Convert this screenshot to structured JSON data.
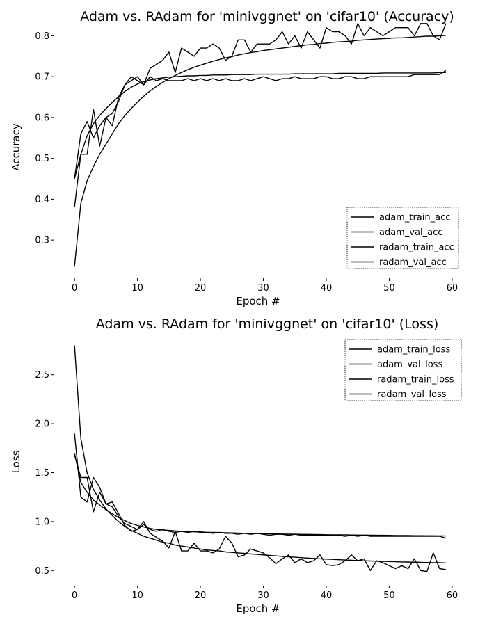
{
  "chart_data": [
    {
      "type": "line",
      "title": "Adam vs. RAdam for 'minivggnet' on 'cifar10' (Accuracy)",
      "xlabel": "Epoch #",
      "ylabel": "Accuracy",
      "xlim": [
        -3,
        62
      ],
      "ylim": [
        0.21,
        0.845
      ],
      "xticks": [
        0,
        10,
        20,
        30,
        40,
        50,
        60
      ],
      "yticks": [
        0.3,
        0.4,
        0.5,
        0.6,
        0.7,
        0.8
      ],
      "ytick_labels": [
        "0.3",
        "0.4",
        "0.5",
        "0.6",
        "0.7",
        "0.8"
      ],
      "grid": false,
      "legend_position": "lower-right",
      "series": [
        {
          "name": "adam_train_acc",
          "values": [
            0.38,
            0.51,
            0.555,
            0.585,
            0.605,
            0.622,
            0.637,
            0.651,
            0.664,
            0.674,
            0.682,
            0.688,
            0.692,
            0.695,
            0.697,
            0.699,
            0.7,
            0.701,
            0.702,
            0.702,
            0.703,
            0.703,
            0.704,
            0.704,
            0.704,
            0.705,
            0.705,
            0.705,
            0.705,
            0.706,
            0.706,
            0.706,
            0.706,
            0.706,
            0.706,
            0.707,
            0.707,
            0.707,
            0.707,
            0.707,
            0.707,
            0.707,
            0.708,
            0.708,
            0.708,
            0.708,
            0.708,
            0.708,
            0.708,
            0.709,
            0.709,
            0.709,
            0.709,
            0.709,
            0.709,
            0.709,
            0.709,
            0.709,
            0.71,
            0.71
          ]
        },
        {
          "name": "adam_val_acc",
          "values": [
            0.45,
            0.56,
            0.59,
            0.55,
            0.58,
            0.6,
            0.58,
            0.65,
            0.68,
            0.69,
            0.7,
            0.68,
            0.7,
            0.69,
            0.695,
            0.69,
            0.69,
            0.69,
            0.695,
            0.69,
            0.695,
            0.69,
            0.695,
            0.69,
            0.695,
            0.69,
            0.69,
            0.695,
            0.69,
            0.695,
            0.7,
            0.695,
            0.69,
            0.695,
            0.695,
            0.7,
            0.695,
            0.695,
            0.695,
            0.7,
            0.7,
            0.695,
            0.695,
            0.7,
            0.7,
            0.695,
            0.695,
            0.7,
            0.7,
            0.7,
            0.7,
            0.7,
            0.7,
            0.7,
            0.705,
            0.705,
            0.705,
            0.705,
            0.705,
            0.715
          ]
        },
        {
          "name": "radam_train_acc",
          "values": [
            0.235,
            0.39,
            0.445,
            0.48,
            0.51,
            0.535,
            0.56,
            0.585,
            0.605,
            0.622,
            0.638,
            0.652,
            0.665,
            0.676,
            0.686,
            0.695,
            0.703,
            0.71,
            0.717,
            0.723,
            0.728,
            0.733,
            0.738,
            0.742,
            0.746,
            0.749,
            0.753,
            0.756,
            0.759,
            0.761,
            0.764,
            0.766,
            0.768,
            0.77,
            0.772,
            0.774,
            0.776,
            0.778,
            0.779,
            0.781,
            0.782,
            0.784,
            0.785,
            0.786,
            0.787,
            0.789,
            0.79,
            0.791,
            0.792,
            0.793,
            0.794,
            0.795,
            0.795,
            0.796,
            0.797,
            0.798,
            0.799,
            0.799,
            0.8,
            0.801
          ]
        },
        {
          "name": "radam_val_acc",
          "values": [
            0.45,
            0.51,
            0.51,
            0.62,
            0.53,
            0.6,
            0.61,
            0.64,
            0.68,
            0.7,
            0.69,
            0.68,
            0.72,
            0.73,
            0.74,
            0.76,
            0.71,
            0.77,
            0.76,
            0.75,
            0.77,
            0.77,
            0.78,
            0.77,
            0.74,
            0.75,
            0.79,
            0.79,
            0.76,
            0.78,
            0.78,
            0.78,
            0.79,
            0.81,
            0.78,
            0.8,
            0.77,
            0.81,
            0.79,
            0.77,
            0.82,
            0.81,
            0.81,
            0.8,
            0.78,
            0.83,
            0.8,
            0.82,
            0.81,
            0.8,
            0.81,
            0.82,
            0.82,
            0.82,
            0.8,
            0.83,
            0.83,
            0.8,
            0.79,
            0.83
          ]
        }
      ]
    },
    {
      "type": "line",
      "title": "Adam vs. RAdam for 'minivggnet' on 'cifar10' (Loss)",
      "xlabel": "Epoch #",
      "ylabel": "Loss",
      "xlim": [
        -3,
        62
      ],
      "ylim": [
        0.36,
        2.86
      ],
      "xticks": [
        0,
        10,
        20,
        30,
        40,
        50,
        60
      ],
      "yticks": [
        0.5,
        1.0,
        1.5,
        2.0,
        2.5
      ],
      "ytick_labels": [
        "0.5",
        "1.0",
        "1.5",
        "2.0",
        "2.5"
      ],
      "grid": false,
      "legend_position": "upper-right",
      "series": [
        {
          "name": "adam_train_loss",
          "values": [
            1.7,
            1.4,
            1.3,
            1.22,
            1.17,
            1.12,
            1.08,
            1.04,
            1.01,
            0.98,
            0.96,
            0.945,
            0.93,
            0.92,
            0.915,
            0.91,
            0.905,
            0.9,
            0.9,
            0.895,
            0.895,
            0.89,
            0.89,
            0.888,
            0.886,
            0.884,
            0.882,
            0.88,
            0.878,
            0.877,
            0.876,
            0.875,
            0.874,
            0.873,
            0.872,
            0.871,
            0.87,
            0.869,
            0.868,
            0.867,
            0.866,
            0.865,
            0.864,
            0.864,
            0.863,
            0.862,
            0.862,
            0.861,
            0.86,
            0.86,
            0.859,
            0.858,
            0.858,
            0.857,
            0.856,
            0.856,
            0.855,
            0.855,
            0.854,
            0.853
          ]
        },
        {
          "name": "adam_val_loss",
          "values": [
            1.9,
            1.25,
            1.2,
            1.45,
            1.35,
            1.18,
            1.15,
            1.05,
            0.98,
            0.95,
            0.92,
            0.97,
            0.92,
            0.9,
            0.92,
            0.9,
            0.89,
            0.9,
            0.89,
            0.9,
            0.89,
            0.89,
            0.88,
            0.89,
            0.88,
            0.88,
            0.87,
            0.88,
            0.87,
            0.88,
            0.87,
            0.86,
            0.87,
            0.87,
            0.86,
            0.87,
            0.86,
            0.86,
            0.86,
            0.86,
            0.86,
            0.86,
            0.86,
            0.85,
            0.86,
            0.85,
            0.86,
            0.85,
            0.85,
            0.85,
            0.85,
            0.85,
            0.85,
            0.85,
            0.85,
            0.85,
            0.85,
            0.85,
            0.85,
            0.83
          ]
        },
        {
          "name": "radam_train_loss",
          "values": [
            2.8,
            1.85,
            1.5,
            1.33,
            1.22,
            1.13,
            1.06,
            1.0,
            0.95,
            0.91,
            0.88,
            0.85,
            0.83,
            0.81,
            0.79,
            0.78,
            0.76,
            0.75,
            0.74,
            0.73,
            0.72,
            0.71,
            0.705,
            0.7,
            0.69,
            0.685,
            0.68,
            0.675,
            0.67,
            0.665,
            0.66,
            0.655,
            0.65,
            0.645,
            0.64,
            0.636,
            0.632,
            0.628,
            0.624,
            0.62,
            0.617,
            0.614,
            0.611,
            0.608,
            0.605,
            0.602,
            0.6,
            0.598,
            0.596,
            0.594,
            0.592,
            0.59,
            0.588,
            0.587,
            0.585,
            0.584,
            0.582,
            0.581,
            0.58,
            0.578
          ]
        },
        {
          "name": "radam_val_loss",
          "values": [
            1.68,
            1.45,
            1.45,
            1.1,
            1.3,
            1.18,
            1.2,
            1.08,
            0.96,
            0.9,
            0.92,
            1.0,
            0.88,
            0.84,
            0.8,
            0.73,
            0.9,
            0.7,
            0.7,
            0.78,
            0.7,
            0.7,
            0.68,
            0.72,
            0.85,
            0.78,
            0.64,
            0.66,
            0.72,
            0.7,
            0.68,
            0.63,
            0.57,
            0.62,
            0.66,
            0.58,
            0.62,
            0.58,
            0.6,
            0.66,
            0.56,
            0.55,
            0.56,
            0.6,
            0.66,
            0.6,
            0.62,
            0.5,
            0.6,
            0.58,
            0.55,
            0.52,
            0.55,
            0.52,
            0.62,
            0.5,
            0.49,
            0.68,
            0.52,
            0.51
          ]
        }
      ]
    }
  ]
}
